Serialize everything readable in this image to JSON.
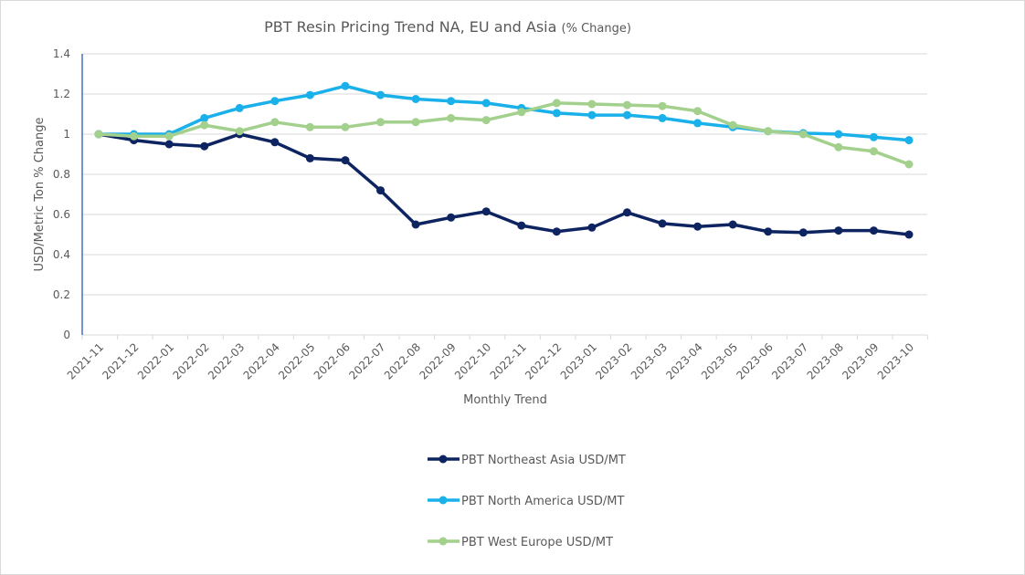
{
  "chart_data": {
    "type": "line",
    "title": "PBT Resin Pricing Trend NA, EU and Asia",
    "title_suffix": "(% Change)",
    "xlabel": "Monthly Trend",
    "ylabel": "USD/Metric Ton % Change",
    "ylim": [
      0,
      1.4
    ],
    "yticks": [
      "0",
      "0.2",
      "0.4",
      "0.6",
      "0.8",
      "1",
      "1.2",
      "1.4"
    ],
    "ytick_values": [
      0,
      0.2,
      0.4,
      0.6,
      0.8,
      1.0,
      1.2,
      1.4
    ],
    "grid": true,
    "legend_position": "bottom",
    "categories": [
      "2021-11",
      "2021-12",
      "2022-01",
      "2022-02",
      "2022-03",
      "2022-04",
      "2022-05",
      "2022-06",
      "2022-07",
      "2022-08",
      "2022-09",
      "2022-10",
      "2022-11",
      "2022-12",
      "2023-01",
      "2023-02",
      "2023-03",
      "2023-04",
      "2023-05",
      "2023-06",
      "2023-07",
      "2023-08",
      "2023-09",
      "2023-10"
    ],
    "series": [
      {
        "name": "PBT Northeast Asia USD/MT",
        "color": "#0d2461",
        "values": [
          1.0,
          0.97,
          0.95,
          0.94,
          1.0,
          0.96,
          0.88,
          0.87,
          0.72,
          0.55,
          0.585,
          0.615,
          0.545,
          0.515,
          0.535,
          0.61,
          0.555,
          0.54,
          0.55,
          0.515,
          0.51,
          0.52,
          0.52,
          0.5
        ]
      },
      {
        "name": "PBT North America USD/MT",
        "color": "#1ab0ea",
        "values": [
          1.0,
          1.0,
          1.0,
          1.08,
          1.13,
          1.165,
          1.195,
          1.24,
          1.195,
          1.175,
          1.165,
          1.155,
          1.13,
          1.105,
          1.095,
          1.095,
          1.08,
          1.055,
          1.035,
          1.015,
          1.005,
          1.0,
          0.985,
          0.97
        ]
      },
      {
        "name": "PBT West Europe USD/MT",
        "color": "#a3d08c",
        "values": [
          1.0,
          0.99,
          0.99,
          1.045,
          1.015,
          1.06,
          1.035,
          1.035,
          1.06,
          1.06,
          1.08,
          1.07,
          1.11,
          1.155,
          1.15,
          1.145,
          1.14,
          1.115,
          1.045,
          1.015,
          1.0,
          0.935,
          0.915,
          0.85
        ]
      }
    ]
  }
}
